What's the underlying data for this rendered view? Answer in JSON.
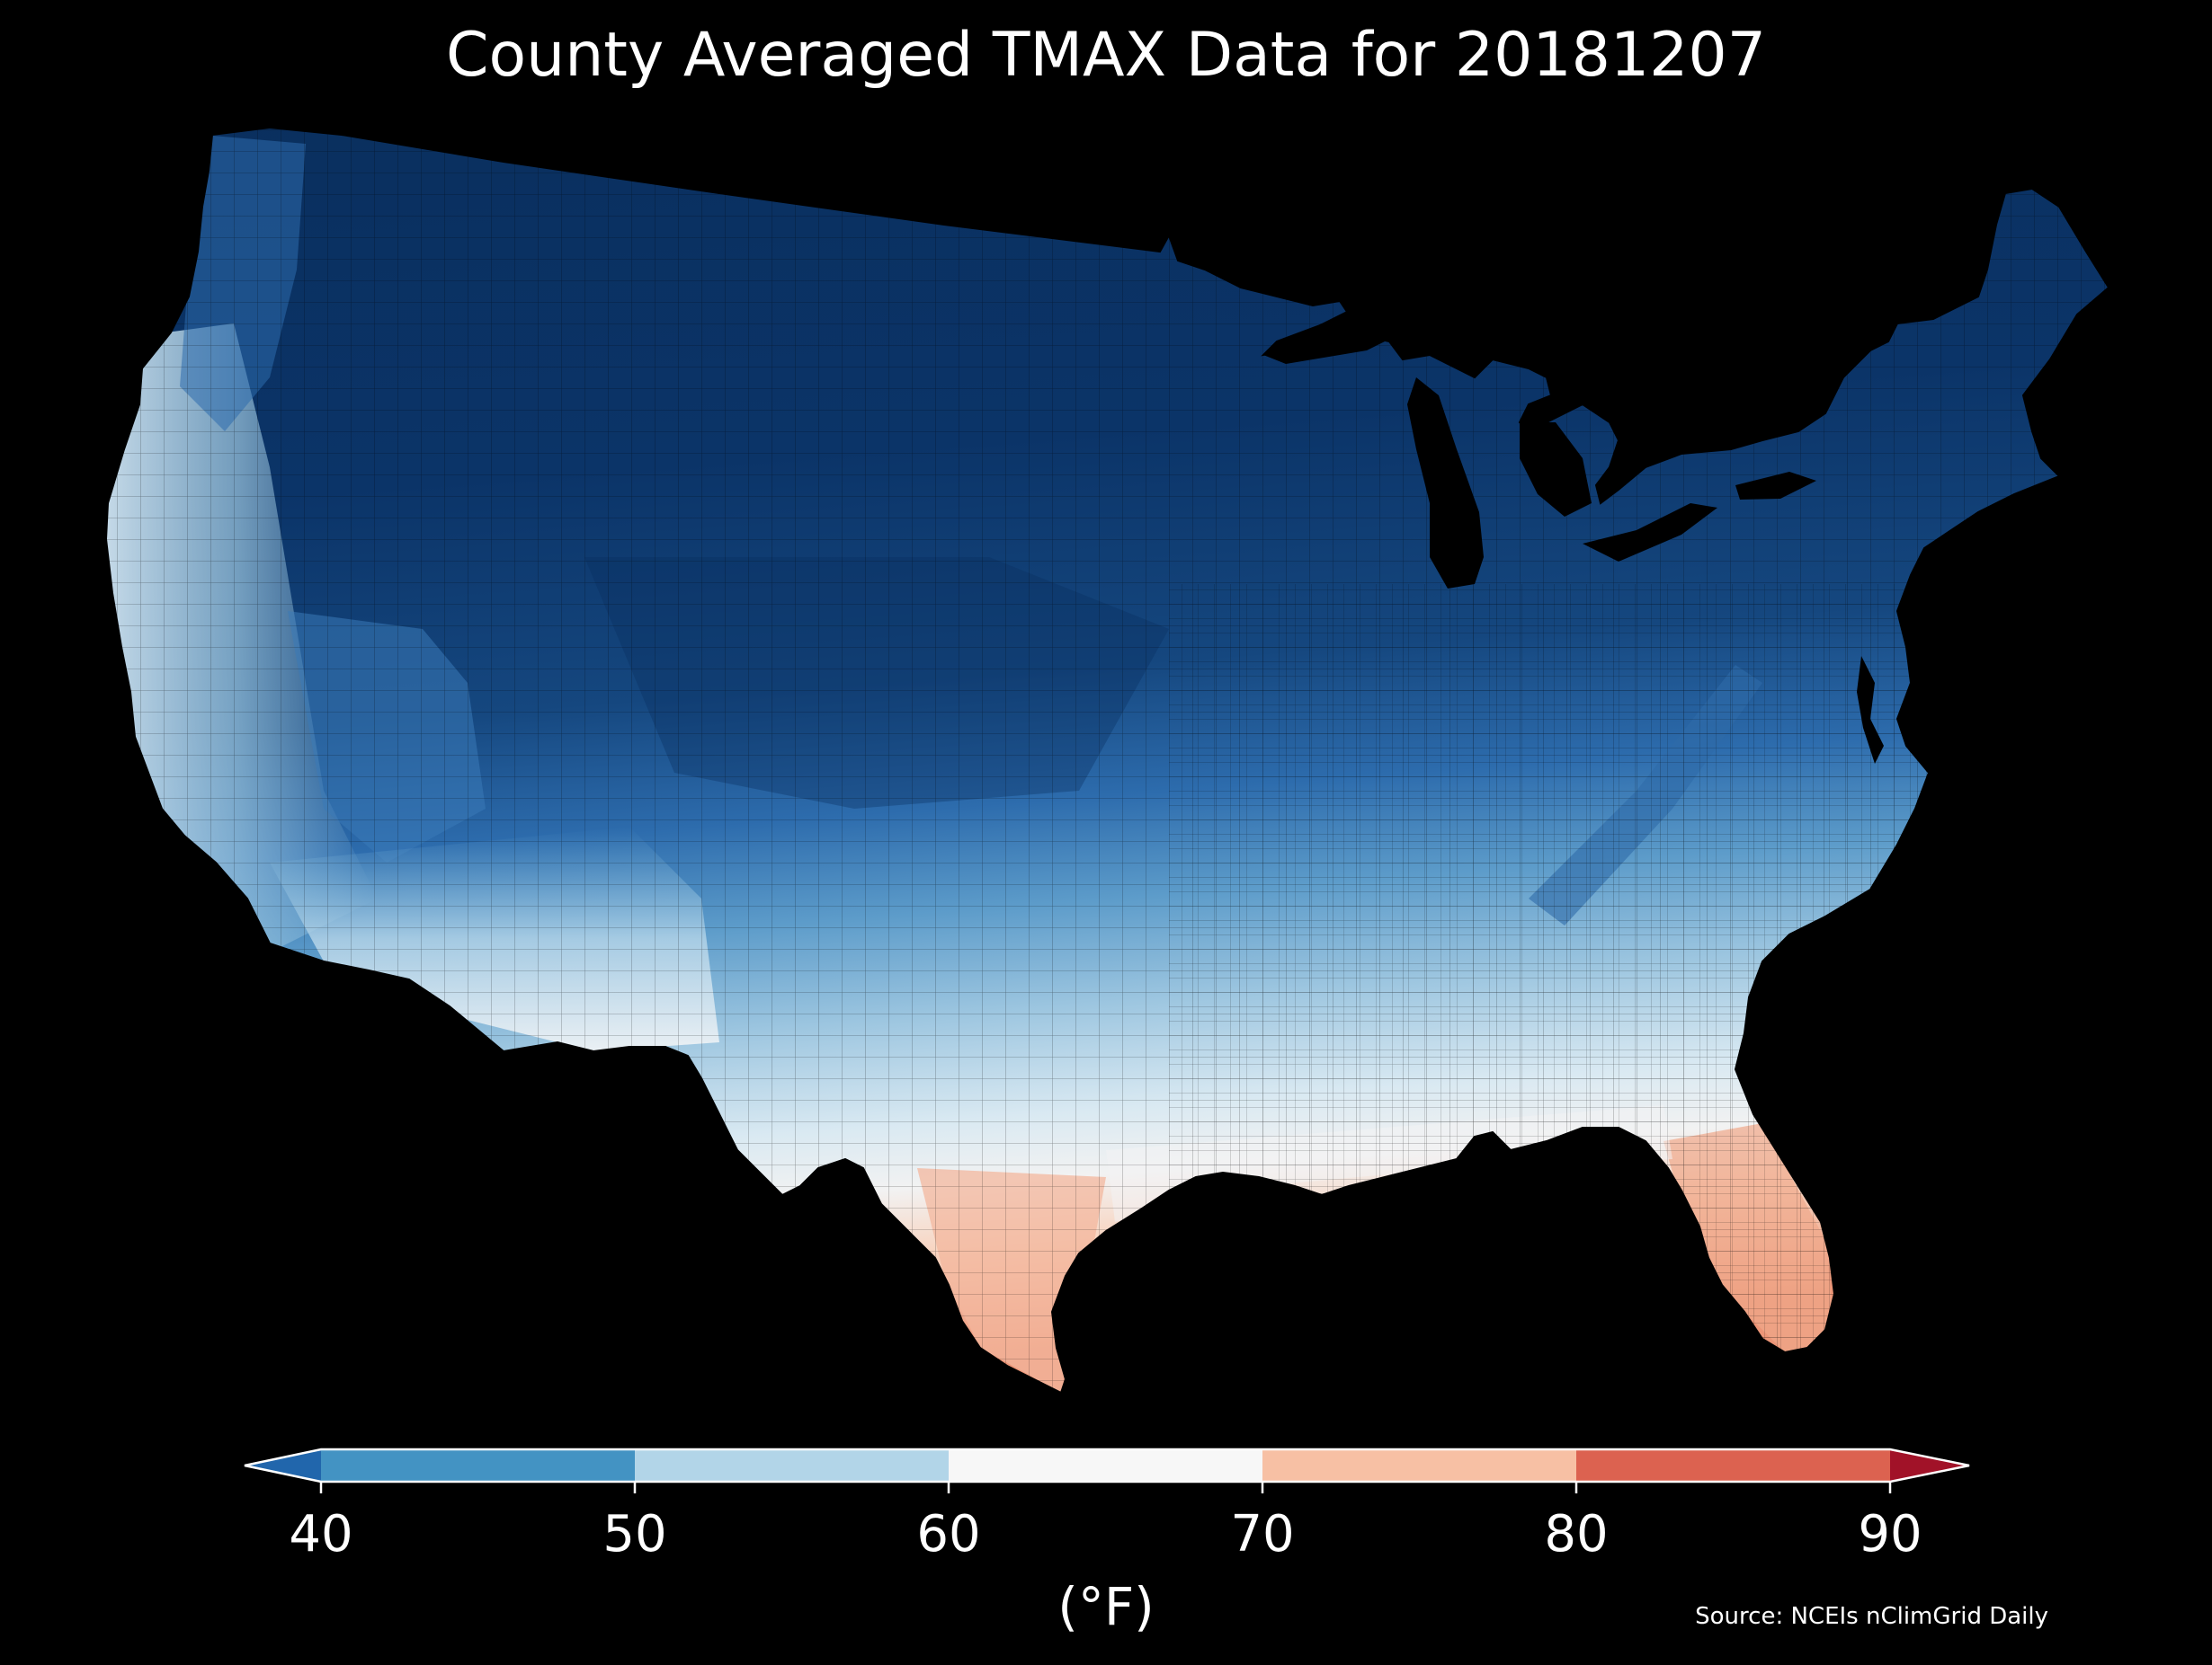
{
  "title": "County Averaged TMAX Data for 20181207",
  "colorbar": {
    "ticks": [
      "40",
      "50",
      "60",
      "70",
      "80",
      "90"
    ],
    "units": "(°F)",
    "extend": "both",
    "bins": [
      {
        "range": "<40",
        "color": "#2166ac"
      },
      {
        "range": "40-50",
        "color": "#4393c3"
      },
      {
        "range": "50-60",
        "color": "#b2d5e8"
      },
      {
        "range": "60-70",
        "color": "#f7f7f7"
      },
      {
        "range": "70-80",
        "color": "#f7c0a4"
      },
      {
        "range": "80-90",
        "color": "#dc6250"
      },
      {
        "range": ">90",
        "color": "#a11228"
      }
    ]
  },
  "map": {
    "region": "Contiguous United States, county level",
    "variable": "TMAX",
    "date": "20181207",
    "background": "#000000",
    "palette": "RdBu_r (continuous fill on map)"
  },
  "source": "Source: NCEIs nClimGrid Daily"
}
